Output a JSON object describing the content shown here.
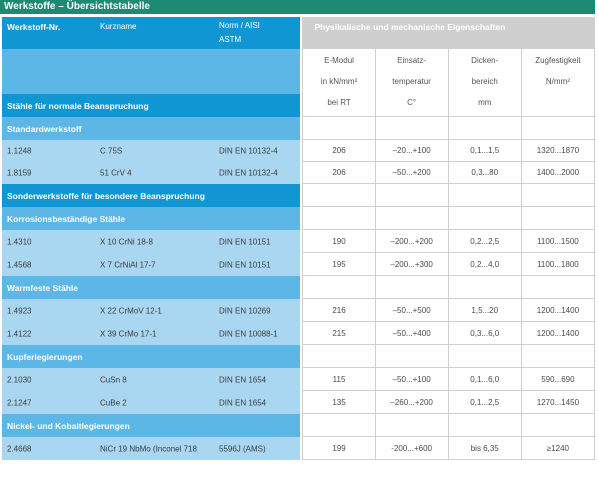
{
  "title": "Werkstoffe – Übersichtstabelle",
  "header": {
    "werkstoff_nr": "Werkstoff-Nr.",
    "kurzname": "Kurzname",
    "norm_line1": "Norm / AISI",
    "norm_line2": "ASTM",
    "properties": "Physikalische und mechanische Eigenschaften",
    "columns": [
      {
        "l1": "E-Modul",
        "l2": "in kN/mm²",
        "l3": "bei RT"
      },
      {
        "l1": "Einsatz-",
        "l2": "temperatur",
        "l3": "C°"
      },
      {
        "l1": "Dicken-",
        "l2": "bereich",
        "l3": "mm"
      },
      {
        "l1": "Zugfestigkeit",
        "l2": "N/mm²",
        "l3": ""
      }
    ]
  },
  "sections": {
    "s1": "Stähle für normale Beanspruchung",
    "s1a": "Standardwerkstoff",
    "s2": "Sonderwerkstoffe für besondere Beanspruchung",
    "s2a": "Korrosionsbeständige Stähle",
    "s2b": "Warmfeste Stähle",
    "s2c": "Kupferlegierungen",
    "s2d": "Nickel- und Kobaltlegierungen"
  },
  "rows": {
    "r1": {
      "nr": "1.1248",
      "kurz": "C 75S",
      "norm": "DIN EN 10132-4",
      "emod": "206",
      "temp": "–20...+100",
      "dicke": "0,1...1,5",
      "zug": "1320...1870"
    },
    "r2": {
      "nr": "1.8159",
      "kurz": "51 CrV 4",
      "norm": "DIN EN 10132-4",
      "emod": "206",
      "temp": "–50...+200",
      "dicke": "0,3...80",
      "zug": "1400...2000"
    },
    "r3": {
      "nr": "1.4310",
      "kurz": "X 10 CrNi 18-8",
      "norm": "DIN EN 10151",
      "emod": "190",
      "temp": "–200...+200",
      "dicke": "0,2...2,5",
      "zug": "1100...1500"
    },
    "r4": {
      "nr": "1.4568",
      "kurz": "X 7 CrNiAl 17-7",
      "norm": "DIN EN 10151",
      "emod": "195",
      "temp": "–200...+300",
      "dicke": "0,2...4,0",
      "zug": "1100...1800"
    },
    "r5": {
      "nr": "1.4923",
      "kurz": "X 22 CrMoV 12-1",
      "norm": "DIN EN 10269",
      "emod": "216",
      "temp": "–50...+500",
      "dicke": "1,5...20",
      "zug": "1200...1400"
    },
    "r6": {
      "nr": "1.4122",
      "kurz": "X 39 CrMo 17-1",
      "norm": "DIN EN 10088-1",
      "emod": "215",
      "temp": "–50...+400",
      "dicke": "0,3...6,0",
      "zug": "1200...1400"
    },
    "r7": {
      "nr": "2.1030",
      "kurz": "CuSn 8",
      "norm": "DIN EN 1654",
      "emod": "115",
      "temp": "–50...+100",
      "dicke": "0,1...6,0",
      "zug": "590...690"
    },
    "r8": {
      "nr": "2.1247",
      "kurz": "CuBe 2",
      "norm": "DIN EN 1654",
      "emod": "135",
      "temp": "–260...+200",
      "dicke": "0,1...2,5",
      "zug": "1270...1450"
    },
    "r9": {
      "nr": "2.4668",
      "kurz": "NiCr 19 NbMo (Inconel 718",
      "norm": "5596J (AMS)",
      "emod": "199",
      "temp": "-200...+600",
      "dicke": "bis 6,35",
      "zug": "≥1240"
    }
  }
}
